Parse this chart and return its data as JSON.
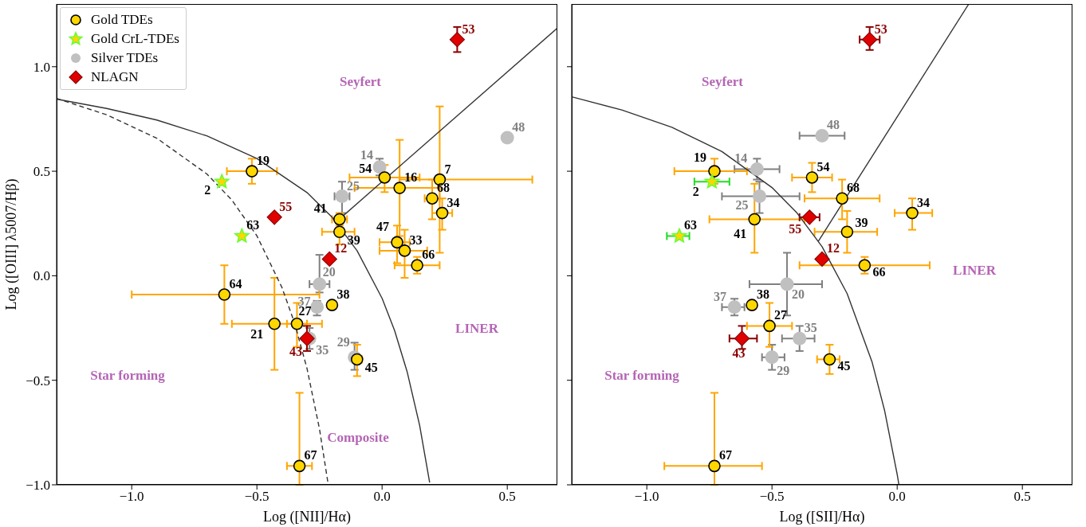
{
  "chart_data": [
    {
      "type": "scatter",
      "xlabel": "Log ([NII]/Hα)",
      "ylabel": "Log ([OIII] λ5007/Hβ)",
      "xlim": [
        -1.3,
        0.7
      ],
      "ylim": [
        -1.0,
        1.3
      ],
      "xticks": [
        {
          "value": -1.0,
          "label": "−1.0"
        },
        {
          "value": -0.5,
          "label": "−0.5"
        },
        {
          "value": 0,
          "label": "0.0"
        },
        {
          "value": 0.5,
          "label": "0.5"
        }
      ],
      "yticks": [
        {
          "value": -1.0,
          "label": "−1.0"
        },
        {
          "value": -0.5,
          "label": "−0.5"
        },
        {
          "value": 0,
          "label": "0.0"
        },
        {
          "value": 0.5,
          "label": "0.5"
        },
        {
          "value": 1.0,
          "label": "1.0"
        }
      ],
      "legend": "top left",
      "series": [
        {
          "name": "Gold TDEs",
          "color": "#ffd700",
          "marker": "circle",
          "x": [
            -0.52,
            0.01,
            0.07,
            0.23,
            0.2,
            0.24,
            -0.17,
            -0.17,
            0.06,
            0.09,
            0.14,
            -0.63,
            -0.43,
            -0.34,
            -0.2,
            -0.1,
            -0.33
          ],
          "values": [
            0.5,
            0.47,
            0.42,
            0.46,
            0.37,
            0.3,
            0.27,
            0.21,
            0.16,
            0.12,
            0.05,
            -0.09,
            -0.23,
            -0.23,
            -0.14,
            -0.4,
            -0.91
          ],
          "errors": [
            0.06,
            [
              0.4,
              0.53
            ],
            [
              0.19,
              0.65
            ],
            [
              0.11,
              0.81
            ],
            [
              0.27,
              0.46
            ],
            [
              0.22,
              0.37
            ],
            0.03,
            0.06,
            [
              0.06,
              0.24
            ],
            [
              -0.01,
              0.22
            ],
            [
              0.01,
              0.09
            ],
            [
              -0.23,
              0.05
            ],
            [
              -0.45,
              -0.01
            ],
            [
              -0.34,
              -0.13
            ],
            null,
            [
              -0.48,
              -0.33
            ],
            [
              -1.0,
              -0.56
            ]
          ],
          "xerrors": [
            0.1,
            [
              -0.13,
              0.15
            ],
            [
              -0.11,
              0.23
            ],
            [
              0.07,
              0.6
            ],
            0.03,
            0.04,
            0.03,
            [
              -0.24,
              -0.11
            ],
            [
              -0.01,
              0.11
            ],
            [
              -0.01,
              0.18
            ],
            [
              0.05,
              0.23
            ],
            [
              -1.0,
              -0.25
            ],
            [
              -0.6,
              -0.24
            ],
            0.04,
            null,
            0.02,
            [
              -0.38,
              -0.28
            ]
          ]
        },
        {
          "name": "Gold CrL-TDEs",
          "color": "#66ff33",
          "marker": "star",
          "x": [
            -0.64,
            -0.56
          ],
          "values": [
            0.45,
            0.19
          ]
        },
        {
          "name": "Silver TDEs",
          "color": "#c0c0c0",
          "marker": "circle",
          "x": [
            -0.01,
            -0.16,
            0.5,
            -0.25,
            -0.26,
            -0.29,
            -0.11
          ],
          "values": [
            0.52,
            0.38,
            0.66,
            -0.04,
            -0.15,
            -0.3,
            -0.39
          ],
          "errors": [
            0.04,
            [
              0.3,
              0.45
            ],
            null,
            [
              -0.08,
              0.1
            ],
            [
              -0.19,
              -0.12
            ],
            0.05,
            [
              -0.45,
              -0.32
            ]
          ],
          "xerrors": [
            null,
            0.03,
            null,
            0.04,
            null,
            null,
            null
          ]
        },
        {
          "name": "NLAGN",
          "color": "#e00000",
          "marker": "diamond",
          "x": [
            0.3,
            -0.43,
            -0.21,
            -0.3
          ],
          "values": [
            1.13,
            0.28,
            0.08,
            -0.3
          ],
          "errors": [
            0.06,
            null,
            null,
            0.06
          ]
        },
        {
          "type": "line",
          "color": "#333333",
          "line_style": "solid",
          "x": [
            -1.3,
            -1.1,
            -0.9,
            -0.7,
            -0.5,
            -0.3,
            -0.2,
            -0.1,
            0.0,
            0.05,
            0.1,
            0.15,
            0.19
          ],
          "values": [
            0.845,
            0.8,
            0.745,
            0.669,
            0.561,
            0.398,
            0.28,
            0.12,
            -0.108,
            -0.262,
            -0.459,
            -0.716,
            -0.989
          ]
        },
        {
          "type": "line",
          "color": "#333333",
          "line_style": "dashed",
          "x": [
            -1.3,
            -1.1,
            -0.9,
            -0.7,
            -0.6,
            -0.5,
            -0.4,
            -0.35,
            -0.3,
            -0.25,
            -0.215
          ],
          "values": [
            0.848,
            0.77,
            0.658,
            0.487,
            0.362,
            0.191,
            -0.056,
            -0.225,
            -0.443,
            -0.733,
            -1.0
          ]
        },
        {
          "type": "line",
          "color": "#333333",
          "line_style": "solid",
          "x": [
            -0.18,
            0.7
          ],
          "values": [
            0.261,
            1.185
          ]
        }
      ],
      "annotations": [
        "Seyfert",
        "LINER",
        "Star forming",
        "Composite",
        {
          "text": "19",
          "x": -0.52,
          "y": 0.5
        },
        {
          "text": "54",
          "x": 0.01,
          "y": 0.47
        },
        {
          "text": "16",
          "x": 0.07,
          "y": 0.42
        },
        {
          "text": "7",
          "x": 0.23,
          "y": 0.46
        },
        {
          "text": "68",
          "x": 0.2,
          "y": 0.37
        },
        {
          "text": "34",
          "x": 0.24,
          "y": 0.3
        },
        {
          "text": "41",
          "x": -0.17,
          "y": 0.27
        },
        {
          "text": "39",
          "x": -0.17,
          "y": 0.21
        },
        {
          "text": "47",
          "x": 0.06,
          "y": 0.16
        },
        {
          "text": "33",
          "x": 0.09,
          "y": 0.12
        },
        {
          "text": "66",
          "x": 0.14,
          "y": 0.05
        },
        {
          "text": "64",
          "x": -0.63,
          "y": -0.09
        },
        {
          "text": "21",
          "x": -0.43,
          "y": -0.23
        },
        {
          "text": "27",
          "x": -0.34,
          "y": -0.23
        },
        {
          "text": "38",
          "x": -0.2,
          "y": -0.14
        },
        {
          "text": "45",
          "x": -0.1,
          "y": -0.4
        },
        {
          "text": "67",
          "x": -0.33,
          "y": -0.91
        },
        {
          "text": "2",
          "x": -0.64,
          "y": 0.45
        },
        {
          "text": "63",
          "x": -0.56,
          "y": 0.19
        },
        {
          "text": "14",
          "x": -0.01,
          "y": 0.52
        },
        {
          "text": "25",
          "x": -0.16,
          "y": 0.38
        },
        {
          "text": "48",
          "x": 0.5,
          "y": 0.66
        },
        {
          "text": "20",
          "x": -0.25,
          "y": -0.04
        },
        {
          "text": "37",
          "x": -0.26,
          "y": -0.15
        },
        {
          "text": "35",
          "x": -0.29,
          "y": -0.3
        },
        {
          "text": "29",
          "x": -0.11,
          "y": -0.39
        },
        {
          "text": "53",
          "x": 0.3,
          "y": 1.13
        },
        {
          "text": "55",
          "x": -0.43,
          "y": 0.28
        },
        {
          "text": "12",
          "x": -0.21,
          "y": 0.08
        },
        {
          "text": "43",
          "x": -0.3,
          "y": -0.3
        }
      ]
    },
    {
      "type": "scatter",
      "xlabel": "Log ([SII]/Hα)",
      "xlim": [
        -1.3,
        0.7
      ],
      "ylim": [
        -1.0,
        1.3
      ],
      "xticks": [
        {
          "value": -1.0,
          "label": "−1.0"
        },
        {
          "value": -0.5,
          "label": "−0.5"
        },
        {
          "value": 0,
          "label": "0.0"
        },
        {
          "value": 0.5,
          "label": "0.5"
        }
      ],
      "yticks": [
        {
          "value": -1.0,
          "label": null
        },
        {
          "value": -0.5,
          "label": null
        },
        {
          "value": 0,
          "label": null
        },
        {
          "value": 0.5,
          "label": null
        },
        {
          "value": 1.0,
          "label": null
        }
      ],
      "tick_labels": "x",
      "series": [
        {
          "color": "#ffd700",
          "marker": "circle",
          "x": [
            -0.73,
            -0.34,
            -0.22,
            0.06,
            -0.57,
            -0.2,
            -0.13,
            -0.58,
            -0.51,
            -0.27,
            -0.73
          ],
          "values": [
            0.5,
            0.47,
            0.37,
            0.3,
            0.27,
            0.21,
            0.05,
            -0.14,
            -0.24,
            -0.4,
            -0.91
          ],
          "errors": [
            0.06,
            [
              0.4,
              0.54
            ],
            [
              0.27,
              0.46
            ],
            [
              0.22,
              0.37
            ],
            [
              0.11,
              0.44
            ],
            [
              0.11,
              0.31
            ],
            0.04,
            null,
            [
              -0.34,
              -0.13
            ],
            [
              -0.47,
              -0.33
            ],
            [
              -1.0,
              -0.56
            ]
          ],
          "xerrors": [
            [
              -0.89,
              -0.6
            ],
            [
              -0.42,
              -0.26
            ],
            [
              -0.37,
              -0.07
            ],
            [
              -0.01,
              0.14
            ],
            [
              -0.75,
              -0.37
            ],
            [
              -0.33,
              -0.08
            ],
            [
              -0.39,
              0.13
            ],
            null,
            [
              -0.6,
              -0.42
            ],
            [
              -0.32,
              -0.23
            ],
            [
              -0.93,
              -0.54
            ]
          ]
        },
        {
          "color": "#66ff33",
          "marker": "star",
          "x": [
            -0.74,
            -0.87
          ],
          "values": [
            0.45,
            0.19
          ],
          "xerrors": [
            [
              -0.81,
              -0.67
            ],
            [
              -0.92,
              -0.83
            ]
          ]
        },
        {
          "color": "#c0c0c0",
          "marker": "circle",
          "x": [
            -0.3,
            -0.56,
            -0.55,
            -0.44,
            -0.65,
            -0.39,
            -0.5
          ],
          "values": [
            0.67,
            0.51,
            0.38,
            -0.04,
            -0.15,
            -0.3,
            -0.39
          ],
          "errors": [
            null,
            [
              0.46,
              0.56
            ],
            [
              0.3,
              0.45
            ],
            [
              -0.19,
              0.11
            ],
            0.04,
            0.06,
            0.06
          ],
          "xerrors": [
            [
              -0.39,
              -0.21
            ],
            [
              -0.65,
              -0.47
            ],
            [
              -0.7,
              -0.39
            ],
            [
              -0.59,
              -0.3
            ],
            [
              -0.7,
              -0.61
            ],
            [
              -0.46,
              -0.33
            ],
            [
              -0.54,
              -0.45
            ]
          ]
        },
        {
          "color": "#e00000",
          "marker": "diamond",
          "x": [
            -0.11,
            -0.35,
            -0.3,
            -0.62
          ],
          "values": [
            1.13,
            0.28,
            0.08,
            -0.3
          ],
          "errors": [
            [
              1.08,
              1.19
            ],
            null,
            null,
            [
              -0.35,
              -0.24
            ]
          ],
          "xerrors": [
            0.04,
            0.04,
            null,
            [
              -0.67,
              -0.56
            ]
          ]
        },
        {
          "type": "line",
          "color": "#333333",
          "line_style": "solid",
          "x": [
            -1.3,
            -1.1,
            -0.9,
            -0.7,
            -0.5,
            -0.4,
            -0.3,
            -0.2,
            -0.1,
            -0.05,
            0.0,
            0.007
          ],
          "values": [
            0.856,
            0.793,
            0.71,
            0.594,
            0.422,
            0.3,
            0.139,
            -0.085,
            -0.414,
            -0.646,
            -0.95,
            -1.0
          ]
        },
        {
          "type": "line",
          "color": "#333333",
          "line_style": "solid",
          "x": [
            -0.315,
            0.286
          ],
          "values": [
            0.165,
            1.3
          ]
        }
      ],
      "annotations": [
        "Seyfert",
        "LINER",
        "Star forming",
        {
          "text": "19",
          "x": -0.73,
          "y": 0.5
        },
        {
          "text": "54",
          "x": -0.34,
          "y": 0.47
        },
        {
          "text": "68",
          "x": -0.22,
          "y": 0.37
        },
        {
          "text": "34",
          "x": 0.06,
          "y": 0.3
        },
        {
          "text": "41",
          "x": -0.57,
          "y": 0.27
        },
        {
          "text": "39",
          "x": -0.2,
          "y": 0.21
        },
        {
          "text": "66",
          "x": -0.13,
          "y": 0.05
        },
        {
          "text": "38",
          "x": -0.58,
          "y": -0.14
        },
        {
          "text": "27",
          "x": -0.51,
          "y": -0.24
        },
        {
          "text": "45",
          "x": -0.27,
          "y": -0.4
        },
        {
          "text": "67",
          "x": -0.73,
          "y": -0.91
        },
        {
          "text": "2",
          "x": -0.74,
          "y": 0.45
        },
        {
          "text": "63",
          "x": -0.87,
          "y": 0.19
        },
        {
          "text": "48",
          "x": -0.3,
          "y": 0.67
        },
        {
          "text": "14",
          "x": -0.56,
          "y": 0.51
        },
        {
          "text": "25",
          "x": -0.55,
          "y": 0.38
        },
        {
          "text": "20",
          "x": -0.44,
          "y": -0.04
        },
        {
          "text": "37",
          "x": -0.65,
          "y": -0.15
        },
        {
          "text": "35",
          "x": -0.39,
          "y": -0.3
        },
        {
          "text": "29",
          "x": -0.5,
          "y": -0.39
        },
        {
          "text": "53",
          "x": -0.11,
          "y": 1.13
        },
        {
          "text": "55",
          "x": -0.35,
          "y": 0.28
        },
        {
          "text": "12",
          "x": -0.3,
          "y": 0.08
        },
        {
          "text": "43",
          "x": -0.62,
          "y": -0.3
        }
      ]
    }
  ]
}
